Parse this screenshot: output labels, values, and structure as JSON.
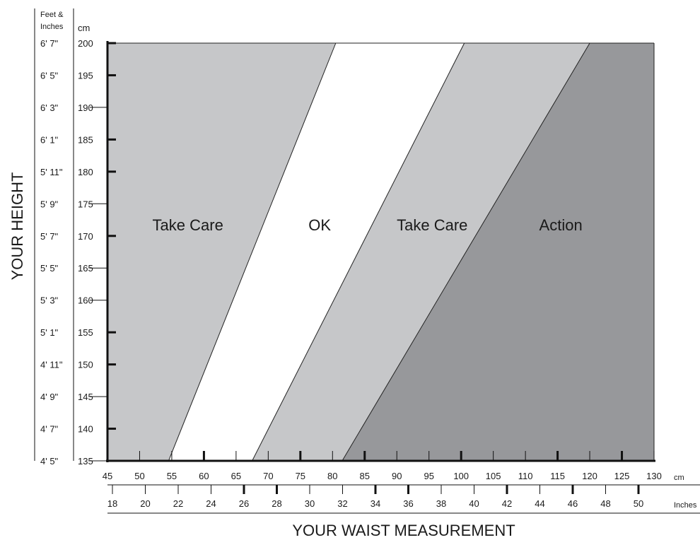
{
  "chart_data": {
    "type": "area",
    "xlabel": "YOUR WAIST MEASUREMENT",
    "ylabel": "YOUR HEIGHT",
    "x_unit_label": "cm",
    "x_secondary_unit_label": "Inches",
    "y_unit_label": "cm",
    "y_secondary_header": "Feet & Inches",
    "xlim": [
      45,
      130
    ],
    "ylim": [
      135,
      200
    ],
    "x_ticks_cm": [
      45,
      50,
      55,
      60,
      65,
      70,
      75,
      80,
      85,
      90,
      95,
      100,
      105,
      110,
      115,
      120,
      125,
      130
    ],
    "x_major_cm": [
      60,
      75,
      85,
      100,
      115,
      125
    ],
    "x_ticks_inches": [
      18,
      20,
      22,
      24,
      26,
      28,
      30,
      32,
      34,
      36,
      38,
      40,
      42,
      44,
      46,
      48,
      50
    ],
    "x_major_inches": [
      26,
      28,
      34,
      36,
      42,
      46,
      50
    ],
    "y_ticks_cm": [
      135,
      140,
      145,
      150,
      155,
      160,
      165,
      170,
      175,
      180,
      185,
      190,
      195,
      200
    ],
    "y_major_cm": [
      140,
      150,
      155,
      170,
      180,
      185,
      195,
      200
    ],
    "y_ticks_feet": [
      "4' 5\"",
      "4' 7\"",
      "4' 9\"",
      "4' 11\"",
      "5' 1\"",
      "5' 3\"",
      "5' 5\"",
      "5' 7\"",
      "5' 9\"",
      "5' 11\"",
      "6' 1\"",
      "6' 3\"",
      "6' 5\"",
      "6' 7\""
    ],
    "boundaries": [
      {
        "x_at_ymin": 54.5,
        "x_at_ymax": 80.5
      },
      {
        "x_at_ymin": 67.5,
        "x_at_ymax": 100.5
      },
      {
        "x_at_ymin": 81.5,
        "x_at_ymax": 120
      }
    ],
    "zones": [
      {
        "label": "Take Care",
        "color": "#c6c7c9",
        "label_x": 57.5,
        "label_y": 170
      },
      {
        "label": "OK",
        "color": "#ffffff",
        "label_x": 78,
        "label_y": 170
      },
      {
        "label": "Take Care",
        "color": "#c6c7c9",
        "label_x": 95.5,
        "label_y": 170
      },
      {
        "label": "Action",
        "color": "#97989b",
        "label_x": 115.5,
        "label_y": 170
      }
    ]
  }
}
